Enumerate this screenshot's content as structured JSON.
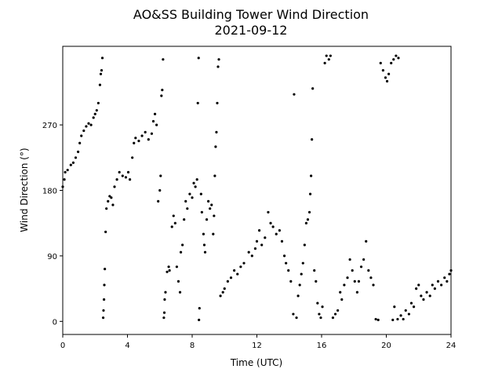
{
  "chart_data": {
    "type": "scatter",
    "title": "AO&SS Building Tower Wind Direction",
    "subtitle": "2021-09-12",
    "x_label": "Time (UTC)",
    "y_label": "Wind Direction (°)",
    "color": "#000000",
    "xlim": [
      0,
      24
    ],
    "xticks": [
      0,
      4,
      8,
      12,
      16,
      20,
      24
    ],
    "ylim": [
      -18,
      378
    ],
    "yticks": [
      0,
      90,
      180,
      270
    ],
    "grid": false,
    "x": [
      0.0,
      0.1,
      0.15,
      0.3,
      0.5,
      0.65,
      0.8,
      0.95,
      1.05,
      1.15,
      1.3,
      1.45,
      1.6,
      1.75,
      1.9,
      2.0,
      2.1,
      2.2,
      2.3,
      2.35,
      2.4,
      2.45,
      2.5,
      2.52,
      2.55,
      2.57,
      2.6,
      2.65,
      2.7,
      2.8,
      2.9,
      3.0,
      3.1,
      3.2,
      3.35,
      3.5,
      3.7,
      3.9,
      4.05,
      4.15,
      4.3,
      4.4,
      4.5,
      4.7,
      4.9,
      5.1,
      5.3,
      5.5,
      5.6,
      5.7,
      5.8,
      5.9,
      6.0,
      6.05,
      6.1,
      6.15,
      6.2,
      6.25,
      6.28,
      6.3,
      6.35,
      6.45,
      6.55,
      6.6,
      6.75,
      6.85,
      6.95,
      7.05,
      7.15,
      7.25,
      7.3,
      7.4,
      7.5,
      7.6,
      7.7,
      7.85,
      8.0,
      8.1,
      8.2,
      8.3,
      8.35,
      8.4,
      8.45,
      8.42,
      8.55,
      8.6,
      8.7,
      8.75,
      8.8,
      8.9,
      9.0,
      9.1,
      9.2,
      9.3,
      9.35,
      9.4,
      9.45,
      9.5,
      9.55,
      9.6,
      9.65,
      9.75,
      9.9,
      10.0,
      10.2,
      10.4,
      10.6,
      10.8,
      11.0,
      11.2,
      11.5,
      11.7,
      11.9,
      12.0,
      12.15,
      12.3,
      12.5,
      12.7,
      12.85,
      13.0,
      13.2,
      13.4,
      13.55,
      13.7,
      13.8,
      13.95,
      14.1,
      14.25,
      14.3,
      14.45,
      14.55,
      14.65,
      14.75,
      14.85,
      14.95,
      15.05,
      15.15,
      15.25,
      15.3,
      15.35,
      15.4,
      15.45,
      15.55,
      15.65,
      15.75,
      15.85,
      15.95,
      16.05,
      16.2,
      16.3,
      16.45,
      16.55,
      16.7,
      16.85,
      17.0,
      17.15,
      17.25,
      17.4,
      17.6,
      17.75,
      17.9,
      18.05,
      18.2,
      18.3,
      18.45,
      18.6,
      18.75,
      18.9,
      19.05,
      19.2,
      19.35,
      19.5,
      19.65,
      19.8,
      19.95,
      20.05,
      20.15,
      20.3,
      20.45,
      20.6,
      20.75,
      20.4,
      20.5,
      20.7,
      20.9,
      21.05,
      21.2,
      21.4,
      21.55,
      21.7,
      21.85,
      22.0,
      22.15,
      22.3,
      22.5,
      22.7,
      22.85,
      23.0,
      23.2,
      23.4,
      23.6,
      23.75,
      23.9,
      24.0
    ],
    "values": [
      185,
      195,
      205,
      208,
      215,
      218,
      225,
      233,
      245,
      255,
      262,
      268,
      272,
      270,
      280,
      285,
      290,
      300,
      325,
      340,
      345,
      362,
      5,
      15,
      30,
      50,
      72,
      123,
      155,
      165,
      172,
      170,
      160,
      185,
      195,
      205,
      200,
      198,
      205,
      195,
      225,
      245,
      252,
      248,
      255,
      260,
      250,
      258,
      275,
      285,
      270,
      165,
      180,
      200,
      310,
      318,
      360,
      5,
      12,
      30,
      40,
      68,
      75,
      70,
      130,
      145,
      135,
      75,
      55,
      40,
      95,
      105,
      140,
      165,
      155,
      175,
      170,
      190,
      185,
      195,
      300,
      362,
      18,
      2,
      175,
      150,
      120,
      105,
      95,
      140,
      165,
      155,
      160,
      120,
      145,
      200,
      240,
      260,
      300,
      350,
      360,
      35,
      40,
      45,
      55,
      60,
      70,
      65,
      75,
      80,
      95,
      90,
      100,
      110,
      125,
      105,
      115,
      150,
      135,
      130,
      120,
      125,
      110,
      90,
      80,
      70,
      55,
      10,
      312,
      5,
      35,
      50,
      65,
      80,
      105,
      135,
      140,
      150,
      175,
      200,
      250,
      320,
      70,
      55,
      25,
      10,
      5,
      20,
      355,
      365,
      360,
      365,
      5,
      10,
      15,
      40,
      30,
      50,
      60,
      85,
      70,
      55,
      40,
      55,
      75,
      85,
      110,
      70,
      60,
      50,
      3,
      2,
      355,
      345,
      335,
      330,
      340,
      355,
      360,
      365,
      362,
      2,
      20,
      3,
      8,
      3,
      15,
      10,
      25,
      20,
      45,
      50,
      35,
      30,
      40,
      35,
      50,
      45,
      55,
      50,
      60,
      55,
      65,
      70
    ]
  }
}
